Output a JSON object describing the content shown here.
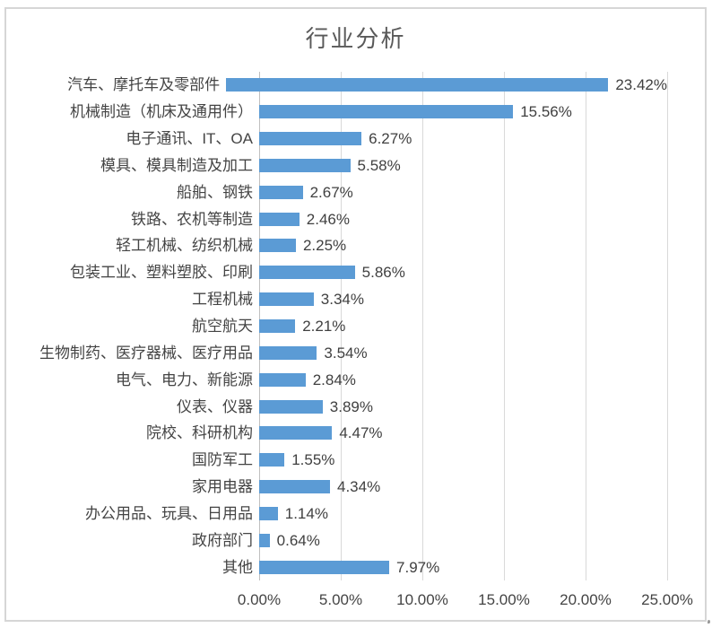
{
  "chart_data": {
    "type": "bar",
    "orientation": "horizontal",
    "title": "行业分析",
    "categories": [
      "汽车、摩托车及零部件",
      "机械制造（机床及通用件）",
      "电子通讯、IT、OA",
      "模具、模具制造及加工",
      "船舶、钢铁",
      "铁路、农机等制造",
      "轻工机械、纺织机械",
      "包装工业、塑料塑胶、印刷",
      "工程机械",
      "航空航天",
      "生物制药、医疗器械、医疗用品",
      "电气、电力、新能源",
      "仪表、仪器",
      "院校、科研机构",
      "国防军工",
      "家用电器",
      "办公用品、玩具、日用品",
      "政府部门",
      "其他"
    ],
    "values": [
      23.42,
      15.56,
      6.27,
      5.58,
      2.67,
      2.46,
      2.25,
      5.86,
      3.34,
      2.21,
      3.54,
      2.84,
      3.89,
      4.47,
      1.55,
      4.34,
      1.14,
      0.64,
      7.97
    ],
    "data_labels": [
      "23.42%",
      "15.56%",
      "6.27%",
      "5.58%",
      "2.67%",
      "2.46%",
      "2.25%",
      "5.86%",
      "3.34%",
      "2.21%",
      "3.54%",
      "2.84%",
      "3.89%",
      "4.47%",
      "1.55%",
      "4.34%",
      "1.14%",
      "0.64%",
      "7.97%"
    ],
    "x_ticks": [
      "0.00%",
      "5.00%",
      "10.00%",
      "15.00%",
      "20.00%",
      "25.00%"
    ],
    "xlim": [
      0,
      25
    ],
    "xlabel": "",
    "ylabel": "",
    "grid": true,
    "legend": false,
    "bar_color": "#5b9bd5",
    "gridline_color": "#d9d9d9",
    "axis_line_color": "#bfbfbf",
    "title_color": "#595959",
    "label_color": "#404040",
    "frame_border_color": "#d6d6d6"
  }
}
